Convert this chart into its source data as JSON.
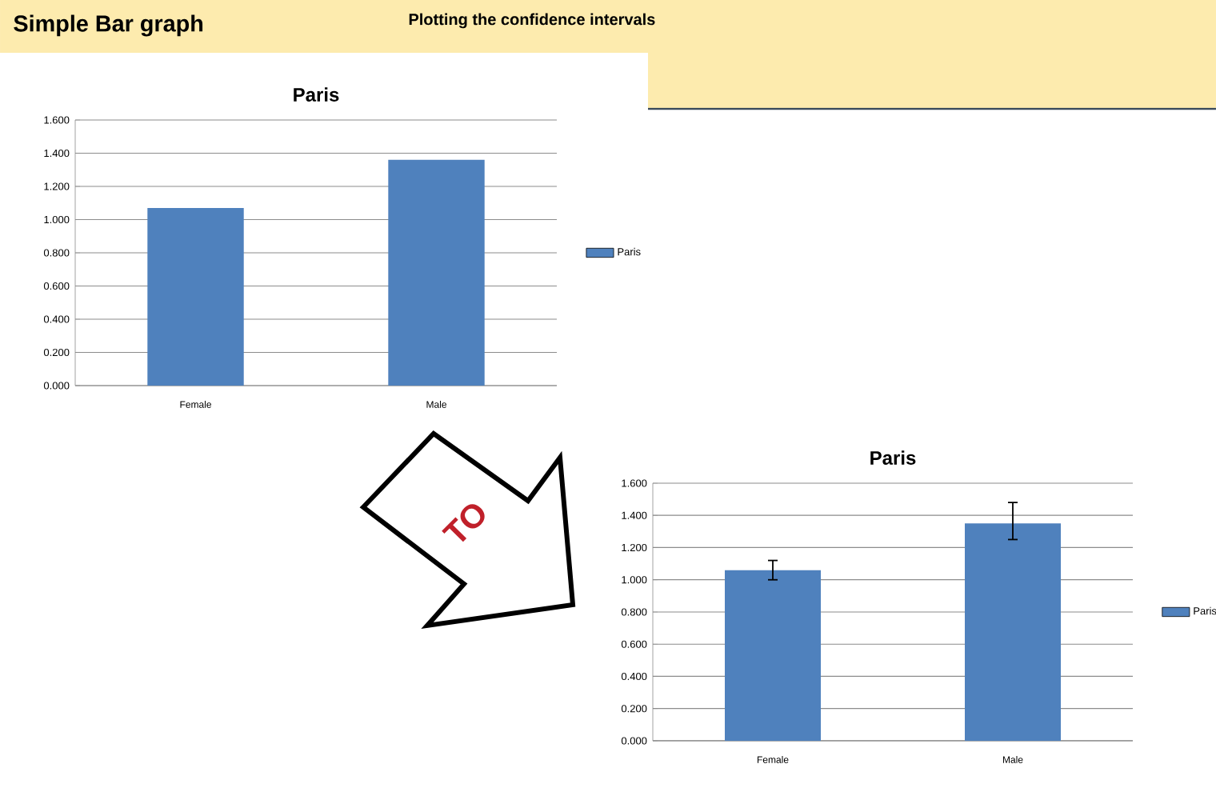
{
  "chart_data": [
    {
      "type": "bar",
      "title": "Paris",
      "categories": [
        "Female",
        "Male"
      ],
      "series": [
        {
          "name": "Paris",
          "color": "#4f81bd",
          "values": [
            1.07,
            1.36
          ]
        }
      ],
      "ylim": [
        0,
        1.6
      ],
      "yticks": [
        {
          "value": 0,
          "label": "0.000"
        },
        {
          "value": 0.2,
          "label": "0.200"
        },
        {
          "value": 0.4,
          "label": "0.400"
        },
        {
          "value": 0.6,
          "label": "0.600"
        },
        {
          "value": 0.8,
          "label": "0.800"
        },
        {
          "value": 1.0,
          "label": "1.000"
        },
        {
          "value": 1.2,
          "label": "1.200"
        },
        {
          "value": 1.4,
          "label": "1.400"
        },
        {
          "value": 1.6,
          "label": "1.600"
        }
      ],
      "grid": "y",
      "legend": "right",
      "annotations": [
        "Simple Bar graph"
      ]
    },
    {
      "type": "bar",
      "title": "Paris",
      "categories": [
        "Female",
        "Male"
      ],
      "series": [
        {
          "name": "Paris",
          "color": "#4f81bd",
          "values": [
            1.06,
            1.35
          ],
          "errors": [
            [
              1.0,
              1.12
            ],
            [
              1.25,
              1.48
            ]
          ]
        }
      ],
      "ylim": [
        0,
        1.6
      ],
      "yticks": [
        {
          "value": 0,
          "label": "0.000"
        },
        {
          "value": 0.2,
          "label": "0.200"
        },
        {
          "value": 0.4,
          "label": "0.400"
        },
        {
          "value": 0.6,
          "label": "0.600"
        },
        {
          "value": 0.8,
          "label": "0.800"
        },
        {
          "value": 1.0,
          "label": "1.000"
        },
        {
          "value": 1.2,
          "label": "1.200"
        },
        {
          "value": 1.4,
          "label": "1.400"
        },
        {
          "value": 1.6,
          "label": "1.600"
        }
      ],
      "grid": "y",
      "legend": "right",
      "annotations": [
        "Plotting the confidence intervals",
        "TO"
      ]
    }
  ]
}
